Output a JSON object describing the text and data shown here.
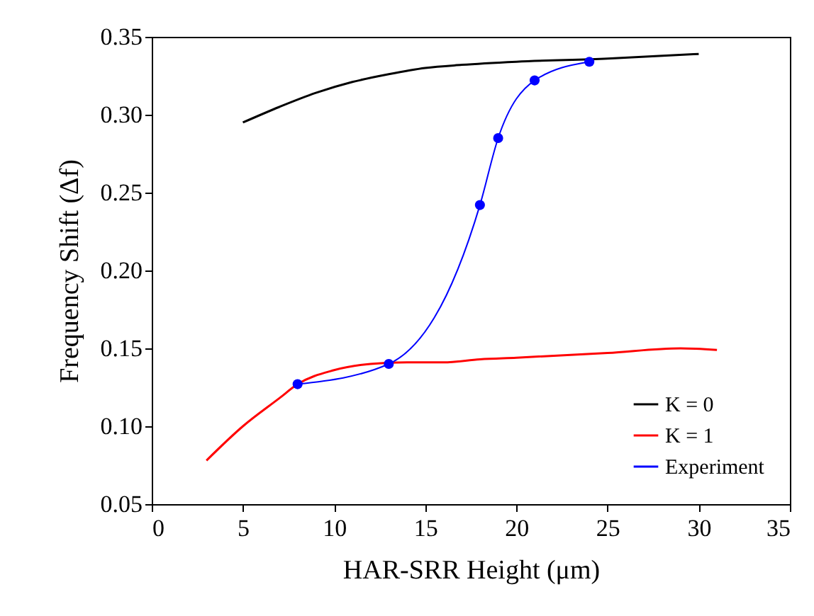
{
  "chart_data": {
    "type": "line",
    "xlabel": "HAR-SRR Height (μm)",
    "ylabel": "Frequency Shift (Δf)",
    "xlim": [
      0,
      35
    ],
    "xticks": [
      0,
      5,
      10,
      15,
      20,
      25,
      30,
      35
    ],
    "ylim": [
      0.05,
      0.35
    ],
    "yticks": [
      0.05,
      {
        "value": 0.1,
        "label": "0.10"
      },
      0.15,
      {
        "value": 0.2,
        "label": "0.20"
      },
      0.25,
      {
        "value": 0.3,
        "label": "0.30"
      },
      0.35
    ],
    "grid": false,
    "legend": "bottom right",
    "series": [
      {
        "name": "K  = 0",
        "color": "#000000",
        "marker": "none",
        "x": [
          5,
          7,
          9,
          11,
          13,
          15,
          17,
          20,
          25,
          30
        ],
        "values": [
          0.295,
          0.305,
          0.314,
          0.321,
          0.326,
          0.33,
          0.332,
          0.334,
          0.336,
          0.339
        ]
      },
      {
        "name": "K  = 1",
        "color": "#ff0000",
        "marker": "none",
        "x": [
          3,
          5,
          7,
          8,
          10,
          12,
          14,
          16,
          18,
          20,
          25,
          29,
          31
        ],
        "values": [
          0.078,
          0.1,
          0.118,
          0.127,
          0.136,
          0.14,
          0.141,
          0.141,
          0.143,
          0.144,
          0.147,
          0.15,
          0.149
        ]
      },
      {
        "name": "Experiment",
        "color": "#0000ff",
        "marker": "circle",
        "x": [
          8,
          13,
          18,
          19,
          21,
          24
        ],
        "values": [
          0.127,
          0.14,
          0.242,
          0.285,
          0.322,
          0.334
        ]
      }
    ]
  }
}
